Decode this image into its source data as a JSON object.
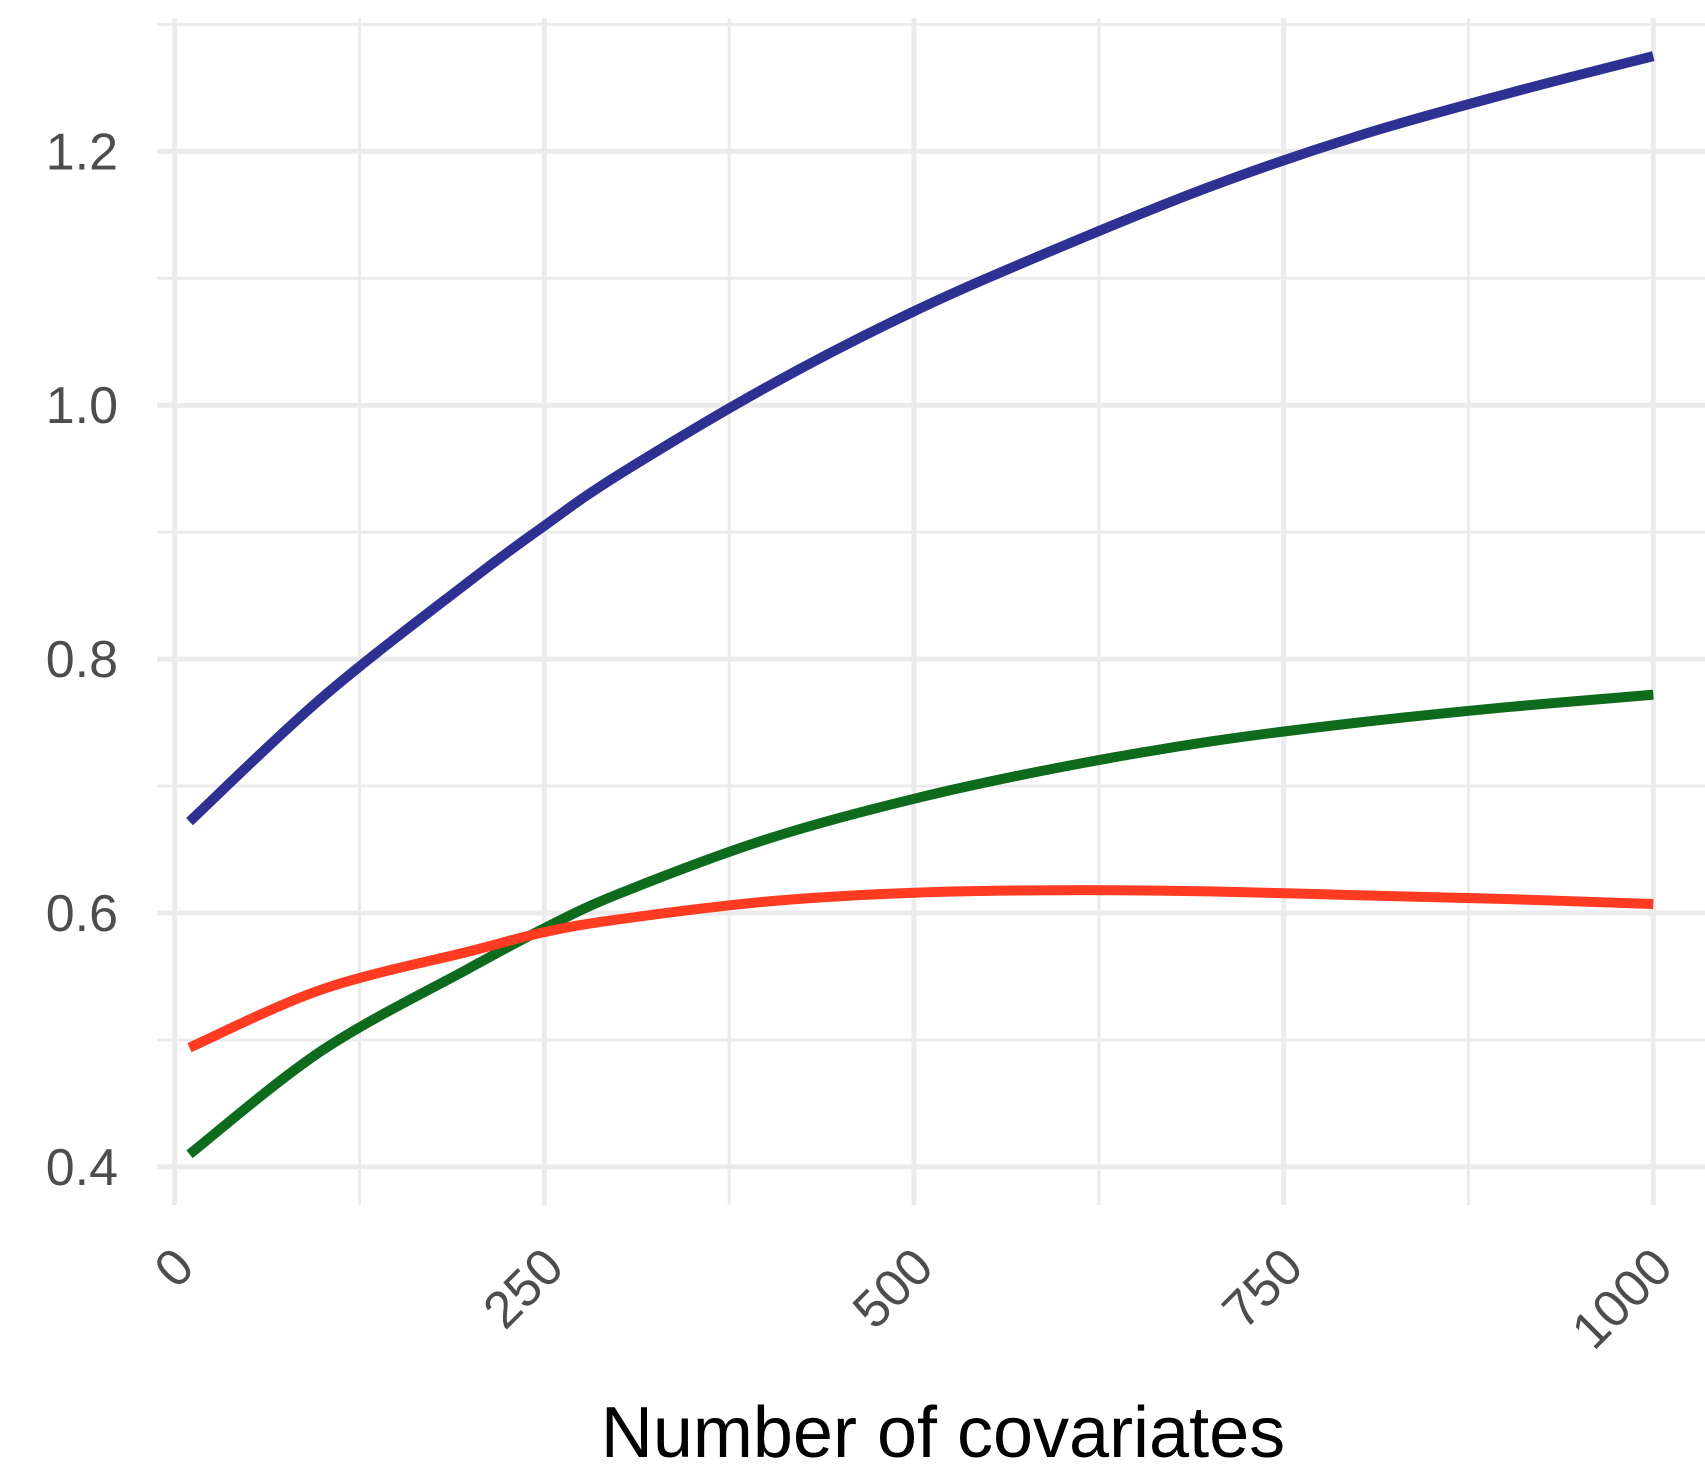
{
  "chart_data": {
    "type": "line",
    "title": "",
    "xlabel": "Number of covariates",
    "ylabel": "",
    "xlim": [
      -12,
      1035
    ],
    "ylim": [
      0.37,
      1.305
    ],
    "x_ticks": [
      0,
      250,
      500,
      750,
      1000
    ],
    "x_tick_labels": [
      "0",
      "250",
      "500",
      "750",
      "1000"
    ],
    "x_minor_ticks": [
      125,
      375,
      625,
      875
    ],
    "y_ticks": [
      0.4,
      0.6,
      0.8,
      1.0,
      1.2
    ],
    "y_tick_labels": [
      "0.4",
      "0.6",
      "0.8",
      "1.0",
      "1.2"
    ],
    "y_minor_ticks": [
      0.5,
      0.7,
      0.9,
      1.1,
      1.3
    ],
    "grid": true,
    "legend": "none",
    "x": [
      10,
      100,
      200,
      250,
      300,
      400,
      500,
      600,
      700,
      800,
      900,
      1000
    ],
    "series": [
      {
        "color": "#2e3192",
        "values": [
          0.672,
          0.77,
          0.862,
          0.905,
          0.945,
          1.014,
          1.074,
          1.125,
          1.172,
          1.212,
          1.245,
          1.275
        ]
      },
      {
        "color": "#0e6b1e",
        "values": [
          0.41,
          0.492,
          0.557,
          0.588,
          0.615,
          0.658,
          0.69,
          0.715,
          0.735,
          0.75,
          0.762,
          0.772
        ]
      },
      {
        "color": "#ff3b21",
        "values": [
          0.494,
          0.54,
          0.57,
          0.585,
          0.595,
          0.609,
          0.616,
          0.618,
          0.617,
          0.614,
          0.611,
          0.607
        ]
      }
    ]
  }
}
